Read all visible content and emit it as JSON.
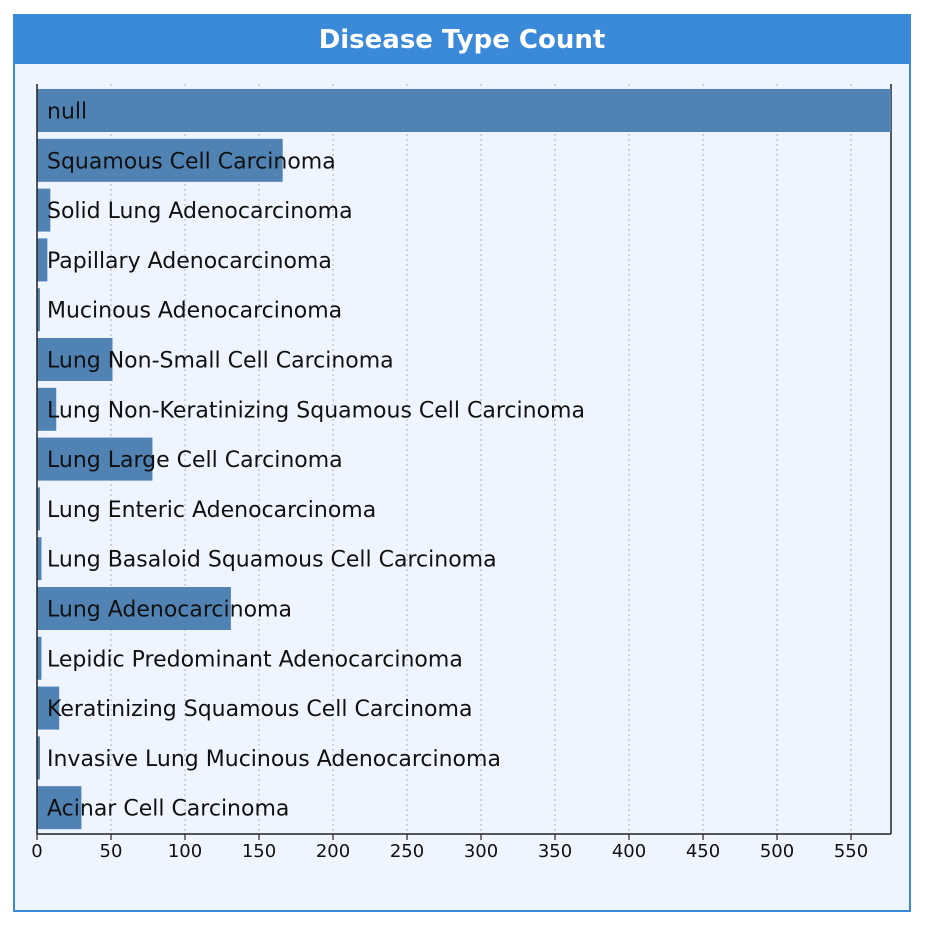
{
  "panel": {
    "title": "Disease Type Count"
  },
  "chart_data": {
    "type": "bar",
    "orientation": "horizontal",
    "categories": [
      "null",
      "Squamous Cell Carcinoma",
      "Solid Lung Adenocarcinoma",
      "Papillary Adenocarcinoma",
      "Mucinous Adenocarcinoma",
      "Lung Non-Small Cell Carcinoma",
      "Lung Non-Keratinizing Squamous Cell Carcinoma",
      "Lung Large Cell Carcinoma",
      "Lung Enteric Adenocarcinoma",
      "Lung Basaloid Squamous Cell Carcinoma",
      "Lung Adenocarcinoma",
      "Lepidic Predominant Adenocarcinoma",
      "Keratinizing Squamous Cell Carcinoma",
      "Invasive Lung Mucinous Adenocarcinoma",
      "Acinar Cell Carcinoma"
    ],
    "values": [
      577,
      166,
      9,
      7,
      2,
      51,
      13,
      78,
      2,
      3,
      131,
      3,
      15,
      2,
      30
    ],
    "xticks": [
      0,
      50,
      100,
      150,
      200,
      250,
      300,
      350,
      400,
      450,
      500,
      550
    ],
    "xlim": [
      0,
      577
    ],
    "grid": true,
    "colors": {
      "bar": "#5182b4",
      "grid": "#b9bcc4",
      "axis": "#222222"
    }
  }
}
